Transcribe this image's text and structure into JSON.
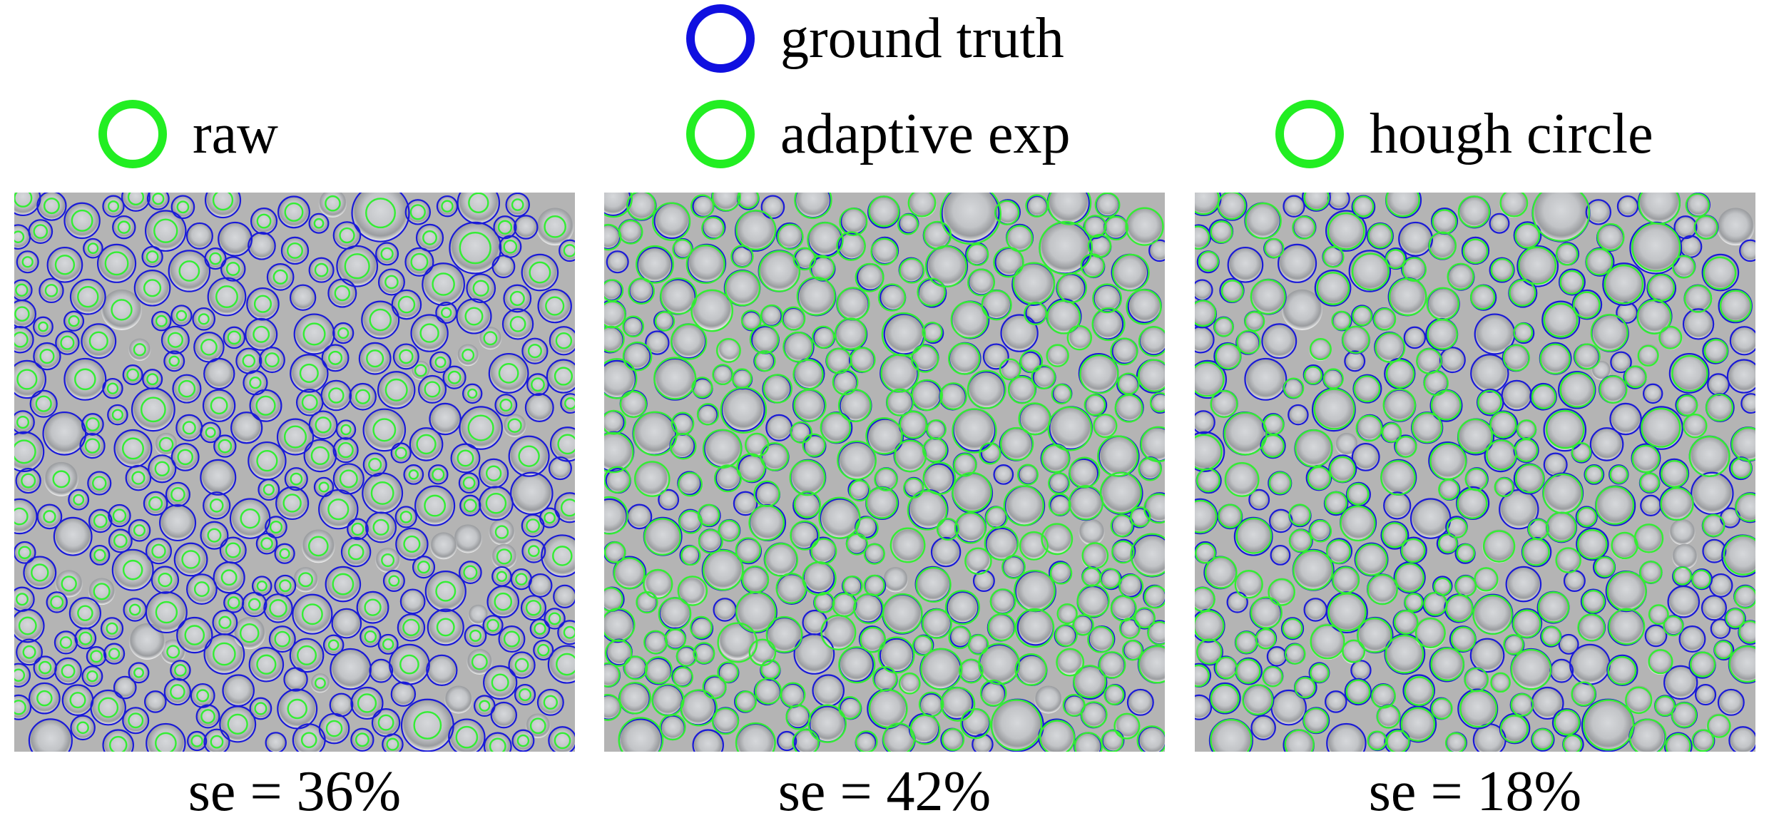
{
  "legend": {
    "ground_truth": {
      "label": "ground truth",
      "color": "#1010e0"
    },
    "raw": {
      "label": "raw",
      "color": "#22ee22"
    },
    "adaptive_exp": {
      "label": "adaptive exp",
      "color": "#22ee22"
    },
    "hough_circle": {
      "label": "hough circle",
      "color": "#22ee22"
    }
  },
  "panels": [
    {
      "name": "raw",
      "caption": "se = 36%"
    },
    {
      "name": "adaptive exp",
      "caption": "se = 42%"
    },
    {
      "name": "hough circle",
      "caption": "se = 18%"
    }
  ],
  "colors": {
    "ground_truth_circle": "#1a1ad8",
    "detected_circle": "#33ee33",
    "background": "#ffffff",
    "microscopy_base": "#b4b4b4"
  }
}
